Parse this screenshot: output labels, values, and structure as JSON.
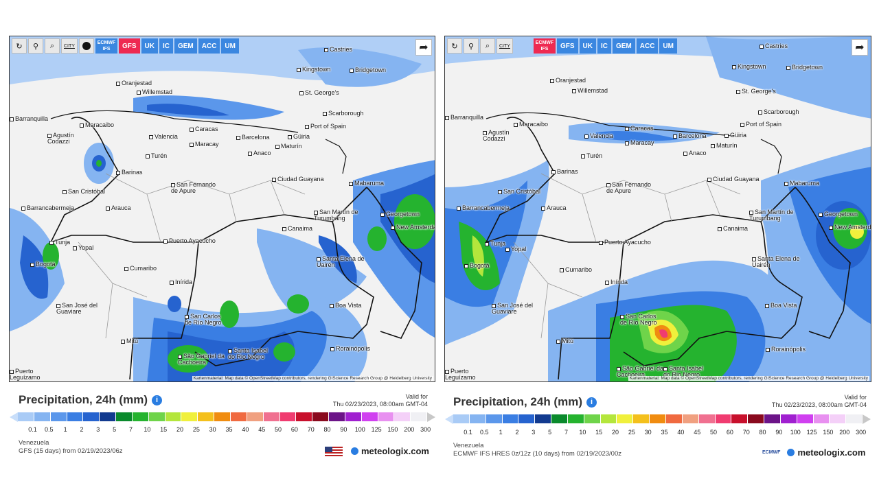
{
  "toolbar": {
    "refresh_icon": "refresh-icon",
    "location_icon": "location-pin-icon",
    "zoom_icon": "zoom-out-icon",
    "city_label": "CITY",
    "dot_icon": "marker-dot-icon",
    "share_icon": "share-icon"
  },
  "left": {
    "models": [
      {
        "label": "ECMWF IFS",
        "active": false
      },
      {
        "label": "GFS",
        "active": true
      },
      {
        "label": "UK",
        "active": false
      },
      {
        "label": "IC",
        "active": false
      },
      {
        "label": "GEM",
        "active": false
      },
      {
        "label": "ACC",
        "active": false
      },
      {
        "label": "UM",
        "active": false
      }
    ],
    "title": "Precipitation, 24h (mm)",
    "valid_label": "Valid for",
    "valid_time": "Thu 02/23/2023, 08:00am GMT-04",
    "region": "Venezuela",
    "run": "GFS (15 days) from 02/19/2023/06z"
  },
  "right": {
    "models": [
      {
        "label": "ECMWF IFS",
        "active": true
      },
      {
        "label": "GFS",
        "active": false
      },
      {
        "label": "UK",
        "active": false
      },
      {
        "label": "IC",
        "active": false
      },
      {
        "label": "GEM",
        "active": false
      },
      {
        "label": "ACC",
        "active": false
      },
      {
        "label": "UM",
        "active": false
      }
    ],
    "title": "Precipitation, 24h (mm)",
    "valid_label": "Valid for",
    "valid_time": "Thu 02/23/2023, 08:00am GMT-04",
    "region": "Venezuela",
    "run": "ECMWF IFS HRES 0z/12z (10 days) from 02/19/2023/00z",
    "ecmwf_logo": "ECMWF"
  },
  "attribution": "Kartenmaterial: Map data © OpenStreetMap contributors, rendering GIScience Research Group @ Heidelberg University",
  "brand": "meteologix.com",
  "legend": {
    "labels": [
      "0.1",
      "0.5",
      "1",
      "2",
      "3",
      "5",
      "7",
      "10",
      "15",
      "20",
      "25",
      "30",
      "35",
      "40",
      "45",
      "50",
      "60",
      "70",
      "80",
      "90",
      "100",
      "125",
      "150",
      "200",
      "300"
    ],
    "colors": [
      "#c8defa",
      "#a9cbf6",
      "#85b4f1",
      "#5b97eb",
      "#3a7ee3",
      "#2663cf",
      "#123a8f",
      "#0a8a2c",
      "#25b32f",
      "#6fd44a",
      "#b4e63c",
      "#f0f03c",
      "#f4c01c",
      "#f08c10",
      "#f06a40",
      "#f0a080",
      "#f07090",
      "#f03c70",
      "#c8102c",
      "#8a0a1e",
      "#6c1488",
      "#a020d0",
      "#d040f0",
      "#e890f0",
      "#f4d0f8",
      "#f0f0f4",
      "#c8c8c8"
    ]
  },
  "cities": [
    {
      "name": "Castries"
    },
    {
      "name": "Kingstown"
    },
    {
      "name": "Bridgetown"
    },
    {
      "name": "Oranjestad"
    },
    {
      "name": "Willemstad"
    },
    {
      "name": "St. George's"
    },
    {
      "name": "Scarborough"
    },
    {
      "name": "Port of Spain"
    },
    {
      "name": "Maracaibo"
    },
    {
      "name": "Caracas"
    },
    {
      "name": "Valencia"
    },
    {
      "name": "Maracay"
    },
    {
      "name": "Barcelona"
    },
    {
      "name": "Güiria"
    },
    {
      "name": "Maturín"
    },
    {
      "name": "Anaco"
    },
    {
      "name": "Agustín Codazzi"
    },
    {
      "name": "Barranquilla"
    },
    {
      "name": "Turén"
    },
    {
      "name": "Barinas"
    },
    {
      "name": "San Cristóbal"
    },
    {
      "name": "San Fernando de Apure"
    },
    {
      "name": "Ciudad Guayana"
    },
    {
      "name": "Mabaruma"
    },
    {
      "name": "Barrancabermeja"
    },
    {
      "name": "Arauca"
    },
    {
      "name": "San Martín de Turumbang"
    },
    {
      "name": "Georgetown"
    },
    {
      "name": "New Amsterdam"
    },
    {
      "name": "Canaima"
    },
    {
      "name": "Tunja"
    },
    {
      "name": "Yopal"
    },
    {
      "name": "Puerto Ayacucho"
    },
    {
      "name": "Bogotá"
    },
    {
      "name": "Santa Elena de Uairén"
    },
    {
      "name": "Cumaribo"
    },
    {
      "name": "Inírida"
    },
    {
      "name": "Boa Vista"
    },
    {
      "name": "San José del Guaviare"
    },
    {
      "name": "San Carlos de Río Negro"
    },
    {
      "name": "Mitú"
    },
    {
      "name": "Rorainópolis"
    },
    {
      "name": "São Gabriel da Cachoeira"
    },
    {
      "name": "Santa Isabel do Rio Negro"
    },
    {
      "name": "Puerto Leguízamo"
    }
  ]
}
